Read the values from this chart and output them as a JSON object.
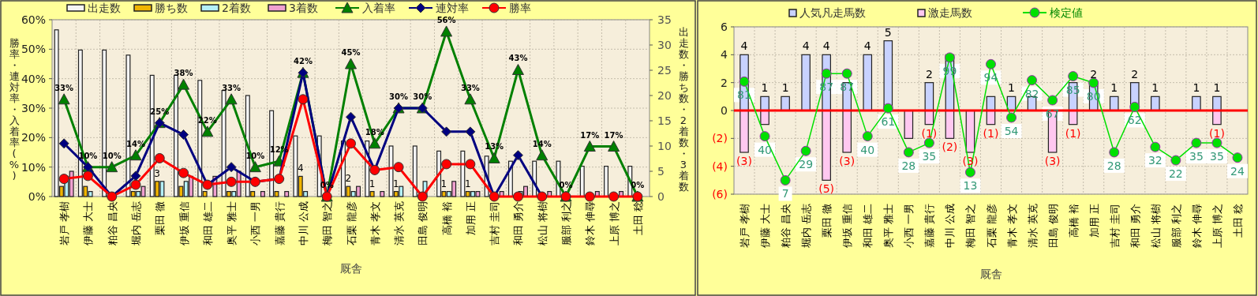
{
  "chart_data": [
    {
      "type": "bar",
      "xlabel": "厩舎",
      "ylabel": "勝率・連対率・入着率(%)",
      "y2label": "出走数・勝ち数・2着数・3着数",
      "categories": [
        "岩戸 孝樹",
        "伊藤 大士",
        "粕谷 昌央",
        "堀内 岳志",
        "栗田 徹",
        "伊坂 重信",
        "和田 雄二",
        "奥平 雅士",
        "小西 一男",
        "嘉藤 貴行",
        "中川 公成",
        "梅田 智之",
        "石栗 龍彦",
        "青木 孝文",
        "清水 英克",
        "田島 俊明",
        "高橋 裕",
        "加用 正",
        "吉村 圭司",
        "和田 勇介",
        "松山 将樹",
        "服部 利之",
        "鈴木 伸尋",
        "上原 博之",
        "土田 稔"
      ],
      "series": [
        {
          "name": "出走数",
          "color": "#f4f4f4",
          "axis": "y2",
          "values": [
            33,
            29,
            29,
            28,
            24,
            24,
            23,
            21,
            20,
            17,
            12,
            12,
            11,
            11,
            10,
            10,
            9,
            9,
            8,
            7,
            7,
            7,
            6,
            6,
            6
          ]
        },
        {
          "name": "勝ち数",
          "color": "#f0b400",
          "axis": "y2",
          "values": [
            2,
            2,
            0,
            1,
            3,
            2,
            1,
            1,
            1,
            1,
            4,
            0,
            2,
            1,
            1,
            0,
            1,
            1,
            0,
            0,
            0,
            0,
            0,
            0,
            0
          ],
          "value_labels": [
            null,
            null,
            null,
            null,
            "3",
            null,
            null,
            null,
            null,
            null,
            "4",
            null,
            "2",
            "1",
            "1",
            null,
            "1",
            "1",
            null,
            null,
            null,
            null,
            null,
            null,
            null
          ]
        },
        {
          "name": "2着数",
          "color": "#b4f0f8",
          "axis": "y2",
          "values": [
            4,
            1,
            0,
            1,
            3,
            3,
            0,
            1,
            0,
            0,
            1,
            0,
            1,
            0,
            2,
            3,
            1,
            1,
            0,
            1,
            0,
            0,
            0,
            0,
            0
          ]
        },
        {
          "name": "3着数",
          "color": "#f0a0d0",
          "axis": "y2",
          "values": [
            5,
            0,
            0,
            2,
            0,
            4,
            4,
            5,
            1,
            1,
            0,
            0,
            2,
            1,
            0,
            0,
            3,
            1,
            1,
            2,
            1,
            0,
            1,
            1,
            0
          ]
        },
        {
          "name": "入着率",
          "type": "line",
          "color": "#008000",
          "marker": "triangle",
          "values": [
            33,
            10,
            10,
            14,
            25,
            38,
            22,
            33,
            10,
            12,
            42,
            0,
            45,
            18,
            30,
            30,
            56,
            33,
            13,
            43,
            14,
            0,
            17,
            17,
            0
          ],
          "value_labels": [
            "33%",
            "10%",
            "10%",
            "14%",
            "25%",
            "38%",
            "22%",
            "33%",
            "10%",
            "12%",
            "42%",
            "0%",
            "45%",
            "18%",
            "30%",
            "30%",
            "56%",
            "33%",
            "13%",
            "43%",
            "14%",
            "0%",
            "17%",
            "17%",
            "0%"
          ]
        },
        {
          "name": "連対率",
          "type": "line",
          "color": "#000080",
          "marker": "diamond",
          "values": [
            18,
            10,
            0,
            7,
            25,
            21,
            4,
            10,
            5,
            6,
            42,
            0,
            27,
            9,
            30,
            30,
            22,
            22,
            0,
            14,
            0,
            null,
            null,
            null,
            null
          ]
        },
        {
          "name": "勝率",
          "type": "line",
          "color": "#ff0000",
          "marker": "circle",
          "values": [
            6,
            7,
            0,
            4,
            13,
            8,
            4,
            5,
            5,
            6,
            33,
            0,
            18,
            9,
            10,
            0,
            11,
            11,
            0,
            0,
            0,
            0,
            0,
            0,
            0
          ]
        }
      ],
      "ylim": [
        0,
        60
      ],
      "yticks": [
        {
          "value": 0,
          "label": "0%"
        },
        {
          "value": 10,
          "label": "10%"
        },
        {
          "value": 20,
          "label": "20%"
        },
        {
          "value": 30,
          "label": "30%"
        },
        {
          "value": 40,
          "label": "40%"
        },
        {
          "value": 50,
          "label": "50%"
        },
        {
          "value": 60,
          "label": "60%"
        }
      ],
      "y2lim": [
        0,
        35
      ],
      "y2ticks": [
        0,
        5,
        10,
        15,
        20,
        25,
        30,
        35
      ],
      "grid": true,
      "legend": "top"
    },
    {
      "type": "bar",
      "stacked": true,
      "xlabel": "厩舎",
      "categories": [
        "岩戸 孝樹",
        "伊藤 大士",
        "粕谷 昌央",
        "堀内 岳志",
        "栗田 徹",
        "伊坂 重信",
        "和田 雄二",
        "奥平 雅士",
        "小西 一男",
        "嘉藤 貴行",
        "中川 公成",
        "梅田 智之",
        "石栗 龍彦",
        "青木 孝文",
        "清水 英克",
        "田島 俊明",
        "高橋 裕",
        "加用 正",
        "吉村 圭司",
        "和田 勇介",
        "松山 将樹",
        "服部 利之",
        "鈴木 伸尋",
        "上原 博之",
        "土田 稔"
      ],
      "series": [
        {
          "name": "人気凡走馬数",
          "color": "#c8d2ff",
          "values": [
            4,
            1,
            1,
            4,
            4,
            2,
            4,
            5,
            0,
            2,
            4,
            0,
            1,
            1,
            1,
            0,
            2,
            2,
            1,
            2,
            1,
            0,
            1,
            1,
            0
          ],
          "value_labels": [
            "4",
            "1",
            "1",
            "4",
            "4",
            null,
            "4",
            "5",
            null,
            "2",
            null,
            null,
            null,
            "1",
            null,
            null,
            null,
            "2",
            "1",
            "2",
            "1",
            null,
            "1",
            "1",
            null
          ]
        },
        {
          "name": "激走馬数",
          "color": "#ffc8f0",
          "values": [
            -3,
            -1,
            0,
            0,
            -5,
            -3,
            0,
            0,
            -2,
            -1,
            -2,
            -3,
            -1,
            0,
            0,
            -3,
            -1,
            0,
            0,
            0,
            0,
            0,
            0,
            -1,
            0
          ],
          "value_labels": [
            "(3)",
            null,
            null,
            null,
            "(5)",
            "(3)",
            null,
            null,
            null,
            "(1)",
            "(2)",
            "(3)",
            "(1)",
            null,
            null,
            "(3)",
            "(1)",
            null,
            null,
            null,
            null,
            null,
            null,
            "(1)",
            null
          ]
        },
        {
          "name": "検定値",
          "type": "line",
          "color": "#00e000",
          "marker": "circle",
          "axis": "y2",
          "values": [
            81,
            40,
            7,
            29,
            87,
            87,
            40,
            61,
            28,
            35,
            99,
            13,
            94,
            54,
            82,
            67,
            85,
            80,
            28,
            62,
            32,
            22,
            35,
            35,
            24
          ],
          "value_labels": [
            "81",
            "40",
            "7",
            "29",
            "87",
            "87",
            "40",
            "61",
            "28",
            "35",
            "99",
            "13",
            "94",
            "54",
            "82",
            "67",
            "85",
            "80",
            "28",
            "62",
            "32",
            "22",
            "35",
            "35",
            "24"
          ]
        }
      ],
      "y2lim": [
        -3.4,
        122
      ],
      "ylim": [
        -6,
        6
      ],
      "yticks": [
        {
          "value": -6,
          "label": "(6)"
        },
        {
          "value": -4,
          "label": "(4)"
        },
        {
          "value": -2,
          "label": "(2)"
        },
        0,
        2,
        4,
        6
      ],
      "ref_lines": [
        {
          "axis": "y",
          "value": 0,
          "color": "#ff0000"
        }
      ],
      "grid": true,
      "legend": "top"
    }
  ]
}
